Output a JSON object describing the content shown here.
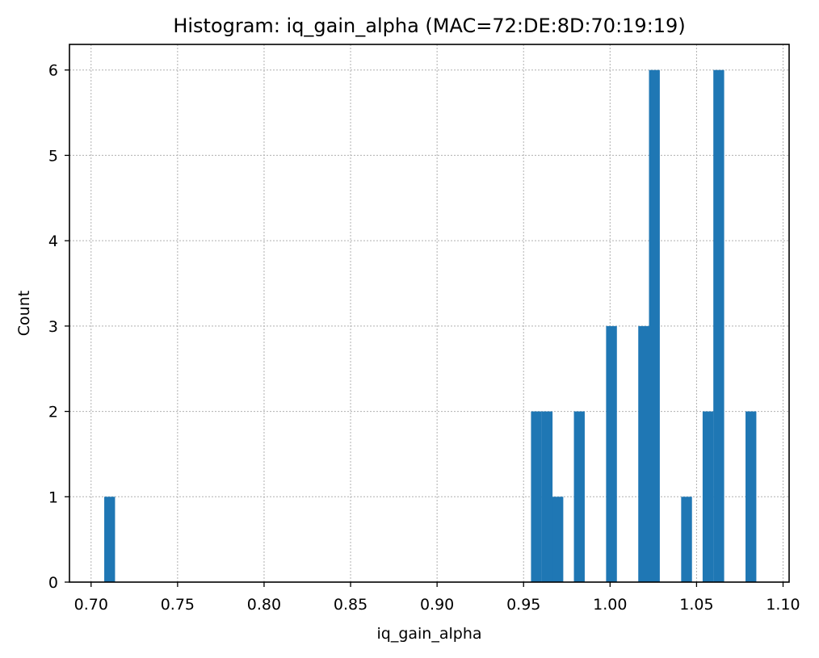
{
  "chart_data": {
    "type": "bar",
    "title": "Histogram: iq_gain_alpha (MAC=72:DE:8D:70:19:19)",
    "xlabel": "iq_gain_alpha",
    "ylabel": "Count",
    "xlim": [
      0.6875,
      1.1035
    ],
    "ylim": [
      0,
      6.3
    ],
    "x_ticks": [
      "0.70",
      "0.75",
      "0.80",
      "0.85",
      "0.90",
      "0.95",
      "1.00",
      "1.05",
      "1.10"
    ],
    "x_tick_values": [
      0.7,
      0.75,
      0.8,
      0.85,
      0.9,
      0.95,
      1.0,
      1.05,
      1.1
    ],
    "y_ticks": [
      "0",
      "1",
      "2",
      "3",
      "4",
      "5",
      "6"
    ],
    "y_tick_values": [
      0,
      1,
      2,
      3,
      4,
      5,
      6
    ],
    "grid": true,
    "color": "#1f77b4",
    "bin_width": 0.00625,
    "bins": [
      {
        "x0": 0.7076,
        "count": 1
      },
      {
        "x0": 0.9543,
        "count": 2
      },
      {
        "x0": 0.9605,
        "count": 2
      },
      {
        "x0": 0.9667,
        "count": 1
      },
      {
        "x0": 0.9791,
        "count": 2
      },
      {
        "x0": 0.9977,
        "count": 3
      },
      {
        "x0": 1.0163,
        "count": 3
      },
      {
        "x0": 1.0225,
        "count": 6
      },
      {
        "x0": 1.0411,
        "count": 1
      },
      {
        "x0": 1.0535,
        "count": 2
      },
      {
        "x0": 1.0597,
        "count": 6
      },
      {
        "x0": 1.0783,
        "count": 2
      }
    ]
  }
}
